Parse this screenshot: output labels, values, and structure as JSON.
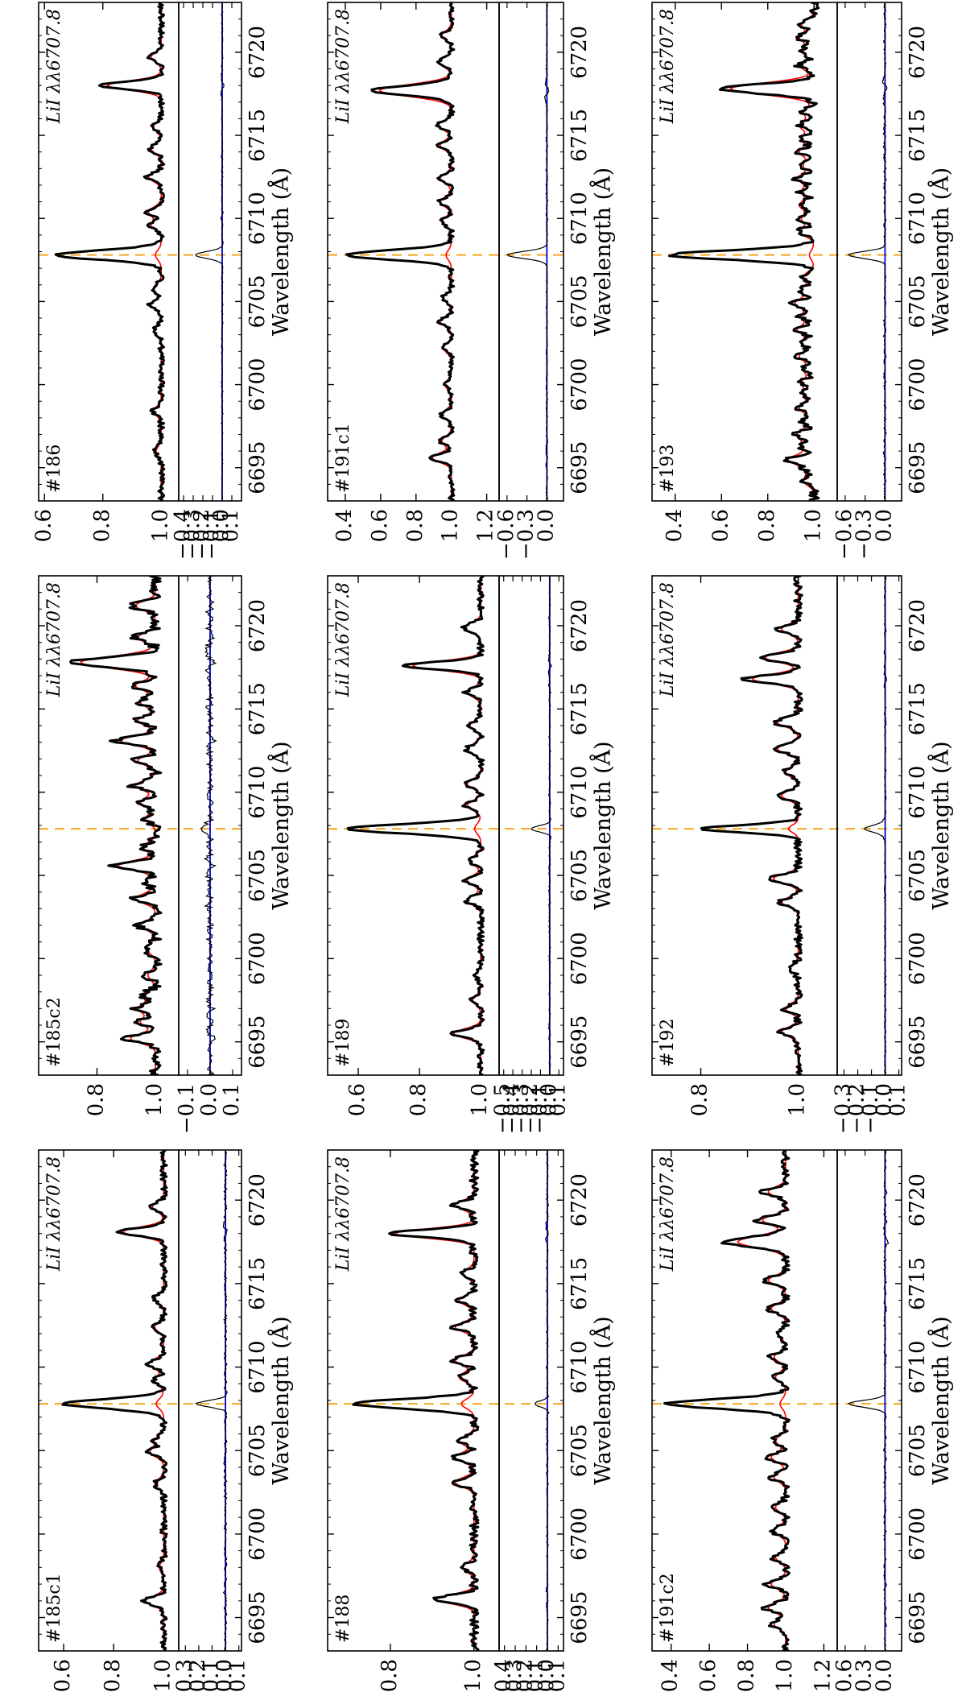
{
  "figure": {
    "orientation": "rotated-90-ccw",
    "grid": false,
    "legend": "none",
    "colors": {
      "observed": "#000000",
      "model": "#ff0000",
      "residual": "#000000",
      "zero_line": "#0000cc",
      "li_marker": "#f5a623"
    }
  },
  "chart_data": [
    {
      "type": "line",
      "star": "#185c1",
      "line_label": "LiI λλ6707.8",
      "xlabel": "Wavelength (Å)",
      "xlim": [
        6693,
        6723
      ],
      "xticks": [
        "6695",
        "6700",
        "6705",
        "6710",
        "6715",
        "6720"
      ],
      "flux_ylim": [
        0.5,
        1.06
      ],
      "flux_yticks": [
        "0.6",
        "0.8",
        "1.0"
      ],
      "resid_ylim": [
        -0.35,
        0.12
      ],
      "resid_yticks": [
        "0.1",
        "0.0",
        "−0.1",
        "−0.2",
        "−0.3"
      ],
      "li_center": 6707.8,
      "features": [
        [
          6696.0,
          0.08
        ],
        [
          6698.0,
          0.02
        ],
        [
          6703.0,
          0.04
        ],
        [
          6704.9,
          0.06
        ],
        [
          6705.6,
          0.04
        ],
        [
          6707.8,
          0.4
        ],
        [
          6709.2,
          0.04
        ],
        [
          6710.2,
          0.07
        ],
        [
          6712.4,
          0.04
        ],
        [
          6714.1,
          0.04
        ],
        [
          6718.1,
          0.18
        ],
        [
          6719.6,
          0.05
        ]
      ],
      "noise": 0.012,
      "model_scale": 0.95,
      "model_li": 0.03,
      "resid_amp": 0.22
    },
    {
      "type": "line",
      "star": "#185c2",
      "line_label": "LiI λλ6707.8",
      "xlabel": "Wavelength (Å)",
      "xlim": [
        6693,
        6723
      ],
      "xticks": [
        "6695",
        "6700",
        "6705",
        "6710",
        "6715",
        "6720"
      ],
      "flux_ylim": [
        0.6,
        1.08
      ],
      "flux_yticks": [
        "0.8",
        "1.0"
      ],
      "resid_ylim": [
        -0.14,
        0.14
      ],
      "resid_yticks": [
        "0.1",
        "0.0",
        "−0.1"
      ],
      "li_center": 6707.8,
      "features": [
        [
          6695.2,
          0.1
        ],
        [
          6696.2,
          0.06
        ],
        [
          6697.0,
          0.07
        ],
        [
          6697.8,
          0.05
        ],
        [
          6699.0,
          0.03
        ],
        [
          6700.6,
          0.04
        ],
        [
          6702.0,
          0.06
        ],
        [
          6703.6,
          0.08
        ],
        [
          6704.6,
          0.04
        ],
        [
          6705.6,
          0.15
        ],
        [
          6706.7,
          0.05
        ],
        [
          6708.4,
          0.04
        ],
        [
          6709.4,
          0.06
        ],
        [
          6710.4,
          0.08
        ],
        [
          6711.9,
          0.07
        ],
        [
          6713.1,
          0.14
        ],
        [
          6714.3,
          0.07
        ],
        [
          6715.4,
          0.06
        ],
        [
          6716.4,
          0.08
        ],
        [
          6717.8,
          0.3
        ],
        [
          6719.3,
          0.07
        ],
        [
          6721.2,
          0.08
        ]
      ],
      "noise": 0.02,
      "model_scale": 0.9,
      "model_li": 0.02,
      "resid_amp": 0.03
    },
    {
      "type": "line",
      "star": "#186",
      "line_label": "LiI λλ6707.8",
      "xlabel": "Wavelength (Å)",
      "xlim": [
        6693,
        6723
      ],
      "xticks": [
        "6695",
        "6700",
        "6705",
        "6710",
        "6715",
        "6720"
      ],
      "flux_ylim": [
        0.58,
        1.06
      ],
      "flux_yticks": [
        "0.6",
        "0.8",
        "1.0"
      ],
      "resid_ylim": [
        -0.45,
        0.2
      ],
      "resid_yticks": [
        "0.1",
        "0.0",
        "−0.1",
        "−0.2",
        "−0.3",
        "−0.4"
      ],
      "li_center": 6707.8,
      "features": [
        [
          6696.0,
          0.02
        ],
        [
          6698.4,
          0.03
        ],
        [
          6703.2,
          0.03
        ],
        [
          6704.8,
          0.04
        ],
        [
          6705.8,
          0.03
        ],
        [
          6707.8,
          0.36
        ],
        [
          6709.6,
          0.04
        ],
        [
          6710.4,
          0.05
        ],
        [
          6712.5,
          0.05
        ],
        [
          6714.2,
          0.04
        ],
        [
          6715.5,
          0.03
        ],
        [
          6718.0,
          0.21
        ],
        [
          6719.7,
          0.04
        ]
      ],
      "noise": 0.01,
      "model_scale": 0.92,
      "model_li": 0.02,
      "resid_amp": 0.28
    },
    {
      "type": "line",
      "star": "#188",
      "line_label": "LiI λλ6707.8",
      "xlabel": "Wavelength (Å)",
      "xlim": [
        6693,
        6723
      ],
      "xticks": [
        "6695",
        "6700",
        "6705",
        "6710",
        "6715",
        "6720"
      ],
      "flux_ylim": [
        0.65,
        1.06
      ],
      "flux_yticks": [
        "0.8",
        "1.0"
      ],
      "resid_ylim": [
        -0.45,
        0.15
      ],
      "resid_yticks": [
        "0.1",
        "0.0",
        "−0.1",
        "−0.2",
        "−0.3",
        "−0.4"
      ],
      "li_center": 6707.8,
      "features": [
        [
          6696.1,
          0.1
        ],
        [
          6698.0,
          0.03
        ],
        [
          6703.1,
          0.05
        ],
        [
          6704.6,
          0.05
        ],
        [
          6705.6,
          0.04
        ],
        [
          6707.8,
          0.29
        ],
        [
          6709.4,
          0.04
        ],
        [
          6710.4,
          0.05
        ],
        [
          6712.4,
          0.05
        ],
        [
          6714.0,
          0.04
        ],
        [
          6715.6,
          0.03
        ],
        [
          6718.0,
          0.21
        ],
        [
          6719.7,
          0.05
        ]
      ],
      "noise": 0.01,
      "model_scale": 0.95,
      "model_li": 0.03,
      "resid_amp": 0.12
    },
    {
      "type": "line",
      "star": "#189",
      "line_label": "LiI λλ6707.8",
      "xlabel": "Wavelength (Å)",
      "xlim": [
        6693,
        6723
      ],
      "xticks": [
        "6695",
        "6700",
        "6705",
        "6710",
        "6715",
        "6720"
      ],
      "flux_ylim": [
        0.5,
        1.06
      ],
      "flux_yticks": [
        "0.6",
        "0.8",
        "1.0"
      ],
      "resid_ylim": [
        -0.55,
        0.15
      ],
      "resid_yticks": [
        "0.1",
        "0.0",
        "−0.1",
        "−0.2",
        "−0.3",
        "−0.4",
        "−0.5"
      ],
      "li_center": 6707.8,
      "features": [
        [
          6695.5,
          0.1
        ],
        [
          6697.5,
          0.03
        ],
        [
          6699.0,
          0.02
        ],
        [
          6703.5,
          0.05
        ],
        [
          6704.7,
          0.05
        ],
        [
          6705.9,
          0.04
        ],
        [
          6707.8,
          0.43
        ],
        [
          6709.2,
          0.05
        ],
        [
          6710.5,
          0.05
        ],
        [
          6712.6,
          0.05
        ],
        [
          6714.0,
          0.04
        ],
        [
          6716.0,
          0.05
        ],
        [
          6717.6,
          0.25
        ],
        [
          6719.9,
          0.06
        ]
      ],
      "noise": 0.01,
      "model_scale": 0.93,
      "model_li": 0.02,
      "resid_amp": 0.2
    },
    {
      "type": "line",
      "star": "#191c1",
      "line_label": "LiI λλ6707.8",
      "xlabel": "Wavelength (Å)",
      "xlim": [
        6693,
        6723
      ],
      "xticks": [
        "6695",
        "6700",
        "6705",
        "6710",
        "6715",
        "6720"
      ],
      "flux_ylim": [
        0.3,
        1.27
      ],
      "flux_yticks": [
        "0.4",
        "0.6",
        "0.8",
        "1.0",
        "1.2"
      ],
      "resid_ylim": [
        -0.72,
        0.25
      ],
      "resid_yticks": [
        "0.0",
        "−0.3",
        "−0.6"
      ],
      "li_center": 6707.8,
      "features": [
        [
          6695.6,
          0.12
        ],
        [
          6696.6,
          0.06
        ],
        [
          6698.2,
          0.06
        ],
        [
          6700.0,
          0.04
        ],
        [
          6702.2,
          0.05
        ],
        [
          6703.8,
          0.07
        ],
        [
          6705.2,
          0.05
        ],
        [
          6707.8,
          0.6
        ],
        [
          6709.8,
          0.06
        ],
        [
          6711.0,
          0.07
        ],
        [
          6712.4,
          0.07
        ],
        [
          6714.4,
          0.07
        ],
        [
          6715.6,
          0.08
        ],
        [
          6717.7,
          0.45
        ],
        [
          6719.4,
          0.08
        ],
        [
          6721.0,
          0.06
        ]
      ],
      "noise": 0.015,
      "model_scale": 0.95,
      "model_li": 0.03,
      "resid_amp": 0.6
    },
    {
      "type": "line",
      "star": "#191c2",
      "line_label": "LiI λλ6707.8",
      "xlabel": "Wavelength (Å)",
      "xlim": [
        6693,
        6723
      ],
      "xticks": [
        "6695",
        "6700",
        "6705",
        "6710",
        "6715",
        "6720"
      ],
      "flux_ylim": [
        0.3,
        1.27
      ],
      "flux_yticks": [
        "0.4",
        "0.6",
        "0.8",
        "1.0",
        "1.2"
      ],
      "resid_ylim": [
        -0.72,
        0.25
      ],
      "resid_yticks": [
        "0.0",
        "−0.3",
        "−0.6"
      ],
      "li_center": 6707.8,
      "features": [
        [
          6694.6,
          0.08
        ],
        [
          6695.6,
          0.12
        ],
        [
          6697.0,
          0.1
        ],
        [
          6698.6,
          0.07
        ],
        [
          6700.2,
          0.08
        ],
        [
          6701.6,
          0.07
        ],
        [
          6703.4,
          0.08
        ],
        [
          6704.6,
          0.1
        ],
        [
          6705.6,
          0.07
        ],
        [
          6707.8,
          0.62
        ],
        [
          6709.4,
          0.07
        ],
        [
          6710.6,
          0.08
        ],
        [
          6712.0,
          0.05
        ],
        [
          6713.5,
          0.1
        ],
        [
          6715.2,
          0.12
        ],
        [
          6717.5,
          0.33
        ],
        [
          6718.8,
          0.16
        ],
        [
          6720.5,
          0.12
        ]
      ],
      "noise": 0.02,
      "model_scale": 0.8,
      "model_li": 0.03,
      "resid_amp": 0.55
    },
    {
      "type": "line",
      "star": "#192",
      "line_label": "LiI λλ6707.8",
      "xlabel": "Wavelength (Å)",
      "xlim": [
        6693,
        6723
      ],
      "xticks": [
        "6695",
        "6700",
        "6705",
        "6710",
        "6715",
        "6720"
      ],
      "flux_ylim": [
        0.7,
        1.08
      ],
      "flux_yticks": [
        "0.8",
        "1.0"
      ],
      "resid_ylim": [
        -0.35,
        0.12
      ],
      "resid_yticks": [
        "0.1",
        "0.0",
        "−0.1",
        "−0.2",
        "−0.3"
      ],
      "li_center": 6707.8,
      "features": [
        [
          6695.6,
          0.04
        ],
        [
          6697.0,
          0.03
        ],
        [
          6699.4,
          0.02
        ],
        [
          6703.4,
          0.04
        ],
        [
          6704.8,
          0.06
        ],
        [
          6707.8,
          0.2
        ],
        [
          6709.8,
          0.04
        ],
        [
          6711.2,
          0.03
        ],
        [
          6712.6,
          0.05
        ],
        [
          6714.2,
          0.05
        ],
        [
          6716.8,
          0.11
        ],
        [
          6718.1,
          0.08
        ],
        [
          6719.8,
          0.04
        ]
      ],
      "noise": 0.008,
      "model_scale": 0.9,
      "model_li": 0.02,
      "resid_amp": 0.15
    },
    {
      "type": "line",
      "star": "#193",
      "line_label": "LiI λλ6707.8",
      "xlabel": "Wavelength (Å)",
      "xlim": [
        6693,
        6723
      ],
      "xticks": [
        "6695",
        "6700",
        "6705",
        "6710",
        "6715",
        "6720"
      ],
      "flux_ylim": [
        0.3,
        1.1
      ],
      "flux_yticks": [
        "0.4",
        "0.6",
        "0.8",
        "1.0"
      ],
      "resid_ylim": [
        -0.72,
        0.25
      ],
      "resid_yticks": [
        "0.0",
        "−0.3",
        "−0.6"
      ],
      "li_center": 6707.8,
      "features": [
        [
          6694.2,
          0.05
        ],
        [
          6694.9,
          0.04
        ],
        [
          6695.5,
          0.12
        ],
        [
          6696.3,
          0.06
        ],
        [
          6697.0,
          0.08
        ],
        [
          6697.8,
          0.05
        ],
        [
          6698.6,
          0.07
        ],
        [
          6699.4,
          0.05
        ],
        [
          6700.1,
          0.06
        ],
        [
          6700.9,
          0.05
        ],
        [
          6701.7,
          0.07
        ],
        [
          6702.5,
          0.06
        ],
        [
          6703.3,
          0.08
        ],
        [
          6704.1,
          0.06
        ],
        [
          6704.9,
          0.09
        ],
        [
          6705.7,
          0.06
        ],
        [
          6706.5,
          0.05
        ],
        [
          6707.8,
          0.62
        ],
        [
          6709.2,
          0.07
        ],
        [
          6710.0,
          0.06
        ],
        [
          6710.8,
          0.07
        ],
        [
          6711.6,
          0.06
        ],
        [
          6712.4,
          0.08
        ],
        [
          6713.2,
          0.05
        ],
        [
          6714.0,
          0.07
        ],
        [
          6714.8,
          0.06
        ],
        [
          6715.6,
          0.07
        ],
        [
          6716.4,
          0.05
        ],
        [
          6717.8,
          0.4
        ],
        [
          6719.2,
          0.07
        ],
        [
          6720.1,
          0.06
        ],
        [
          6720.9,
          0.07
        ],
        [
          6721.7,
          0.06
        ]
      ],
      "noise": 0.02,
      "model_scale": 0.95,
      "model_li": 0.02,
      "resid_amp": 0.55
    }
  ]
}
